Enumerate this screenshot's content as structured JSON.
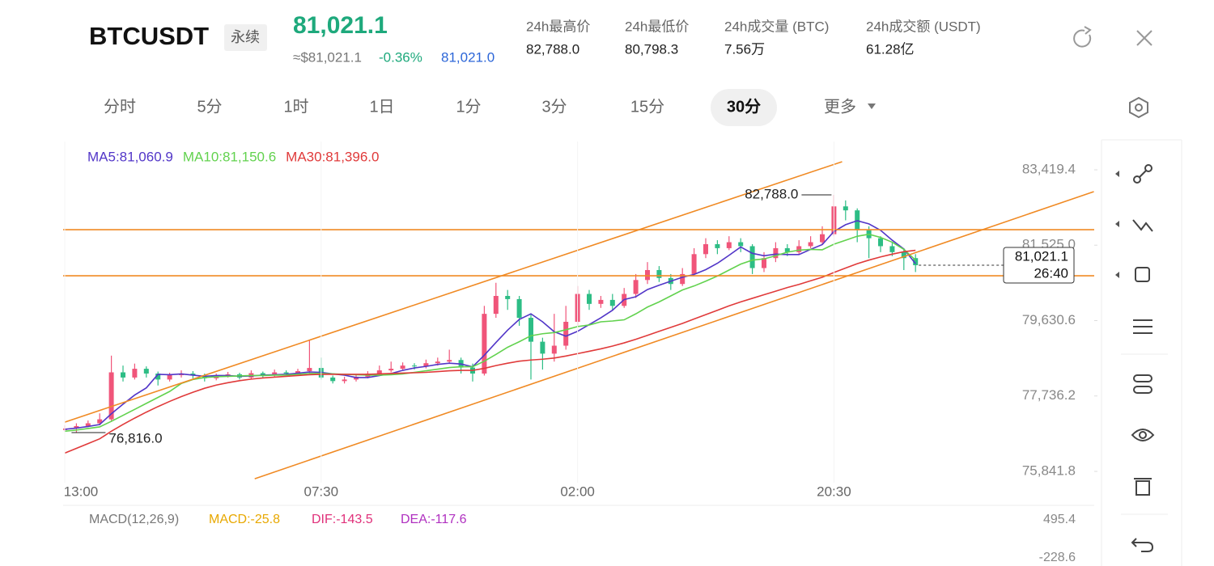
{
  "header": {
    "symbol": "BTCUSDT",
    "contract": "永续",
    "price": "81,021.1",
    "usd_price": "≈$81,021.1",
    "change": "-0.36%",
    "mark_price": "81,021.0",
    "stats": [
      {
        "label": "24h最高价",
        "value": "82,788.0"
      },
      {
        "label": "24h最低价",
        "value": "80,798.3"
      },
      {
        "label": "24h成交量 (BTC)",
        "value": "7.56万"
      },
      {
        "label": "24h成交额 (USDT)",
        "value": "61.28亿"
      }
    ]
  },
  "tabs": [
    "分时",
    "5分",
    "1时",
    "1日",
    "1分",
    "3分",
    "15分",
    "30分",
    "更多"
  ],
  "active_tab": "30分",
  "chart_data": {
    "type": "candlestick",
    "categories": [
      "13:00",
      null,
      null,
      null,
      null,
      null,
      null,
      null,
      null,
      null,
      null,
      null,
      null,
      null,
      null,
      null,
      null,
      null,
      null,
      null,
      null,
      null,
      "07:30",
      null,
      null,
      null,
      null,
      null,
      null,
      null,
      null,
      null,
      null,
      null,
      null,
      null,
      null,
      null,
      null,
      null,
      null,
      null,
      null,
      null,
      "02:00",
      null,
      null,
      null,
      null,
      null,
      null,
      null,
      null,
      null,
      null,
      null,
      null,
      null,
      null,
      null,
      null,
      null,
      null,
      null,
      null,
      null,
      "20:30",
      null,
      null,
      null,
      null,
      null,
      null,
      null
    ],
    "open": [
      76880,
      76920,
      76980,
      77050,
      77150,
      78330,
      78200,
      78420,
      78300,
      78150,
      78260,
      78300,
      78250,
      78180,
      78240,
      78280,
      78200,
      78310,
      78260,
      78330,
      78300,
      78360,
      78440,
      78200,
      78110,
      78150,
      78220,
      78300,
      78380,
      78420,
      78500,
      78480,
      78560,
      78600,
      78640,
      78450,
      78300,
      79800,
      80250,
      80170,
      79700,
      79100,
      78800,
      79000,
      79600,
      80300,
      80050,
      80150,
      80000,
      80300,
      80650,
      80900,
      80700,
      80550,
      80800,
      81300,
      81550,
      81450,
      81600,
      81500,
      80950,
      81200,
      81450,
      81350,
      81500,
      81600,
      81800,
      82500,
      82400,
      81900,
      81700,
      81500,
      81350,
      81200
    ],
    "high": [
      77000,
      77050,
      77120,
      77300,
      78750,
      78500,
      78550,
      78480,
      78350,
      78320,
      78380,
      78360,
      78300,
      78300,
      78340,
      78320,
      78380,
      78350,
      78400,
      78380,
      78420,
      79150,
      78700,
      78250,
      78220,
      78280,
      78360,
      78500,
      78600,
      78580,
      78560,
      78650,
      78700,
      78900,
      78700,
      78550,
      80000,
      80580,
      80400,
      80250,
      79800,
      79200,
      79800,
      80000,
      80500,
      80400,
      80250,
      80300,
      80450,
      80800,
      81100,
      81000,
      80800,
      80950,
      81450,
      81700,
      81650,
      81750,
      81700,
      81550,
      81350,
      81600,
      81550,
      81650,
      81750,
      82000,
      82788,
      82650,
      82450,
      82000,
      81750,
      81600,
      81450,
      81300
    ],
    "low": [
      76840,
      76816,
      76950,
      77000,
      77100,
      78100,
      78150,
      78200,
      78000,
      78100,
      78200,
      78180,
      78100,
      78130,
      78200,
      78150,
      78160,
      78200,
      78220,
      78250,
      78260,
      78300,
      78150,
      78050,
      78050,
      78100,
      78180,
      78250,
      78330,
      78380,
      78400,
      78430,
      78500,
      78550,
      78300,
      78100,
      78250,
      79700,
      79900,
      79500,
      78150,
      78400,
      78600,
      78900,
      79500,
      79900,
      79950,
      79900,
      79950,
      80200,
      80550,
      80600,
      80400,
      80500,
      80750,
      81200,
      81300,
      81400,
      81350,
      80800,
      80850,
      81100,
      81250,
      81300,
      81450,
      81550,
      81750,
      82150,
      81600,
      81200,
      81350,
      81250,
      80900,
      80850
    ],
    "close": [
      76920,
      76980,
      77050,
      77150,
      78330,
      78200,
      78420,
      78300,
      78150,
      78260,
      78300,
      78250,
      78180,
      78240,
      78280,
      78200,
      78310,
      78260,
      78330,
      78300,
      78360,
      78440,
      78200,
      78110,
      78150,
      78220,
      78300,
      78380,
      78420,
      78500,
      78480,
      78560,
      78600,
      78640,
      78450,
      78300,
      79800,
      80250,
      80170,
      79700,
      79100,
      78800,
      79000,
      79600,
      80300,
      80050,
      80150,
      80000,
      80300,
      80650,
      80900,
      80700,
      80550,
      80800,
      81300,
      81550,
      81450,
      81600,
      81500,
      80950,
      81200,
      81450,
      81350,
      81500,
      81600,
      81800,
      82500,
      82400,
      81900,
      81700,
      81500,
      81350,
      81200,
      81021.1
    ],
    "up_color": "#f0557a",
    "down_color": "#2dbd85",
    "series": [
      {
        "name": "MA5:81,060.9",
        "color": "#5236c8",
        "values": [
          76900,
          76930,
          76970,
          77020,
          77290,
          77530,
          77760,
          77940,
          78280,
          78270,
          78290,
          78260,
          78230,
          78250,
          78250,
          78230,
          78240,
          78260,
          78270,
          78280,
          78310,
          78340,
          78330,
          78290,
          78260,
          78200,
          78200,
          78250,
          78300,
          78380,
          78440,
          78480,
          78530,
          78560,
          78540,
          78470,
          78760,
          79080,
          79390,
          79660,
          79800,
          79600,
          79350,
          79240,
          79360,
          79530,
          79700,
          79890,
          80160,
          80230,
          80410,
          80520,
          80620,
          80720,
          80790,
          80910,
          81070,
          81270,
          81480,
          81320,
          81260,
          81300,
          81290,
          81290,
          81420,
          81540,
          81870,
          82040,
          82140,
          82060,
          81900,
          81650,
          81430,
          81060.9
        ]
      },
      {
        "name": "MA10:81,150.6",
        "color": "#62d24e",
        "values": [
          76850,
          76880,
          76920,
          76960,
          77100,
          77250,
          77400,
          77550,
          77700,
          77850,
          78050,
          78150,
          78200,
          78220,
          78230,
          78240,
          78250,
          78250,
          78260,
          78260,
          78280,
          78300,
          78300,
          78290,
          78280,
          78270,
          78260,
          78260,
          78270,
          78290,
          78330,
          78370,
          78410,
          78450,
          78470,
          78470,
          78610,
          78780,
          78960,
          79100,
          79250,
          79300,
          79330,
          79400,
          79480,
          79520,
          79600,
          79620,
          79650,
          79800,
          79970,
          80100,
          80250,
          80400,
          80500,
          80620,
          80750,
          80900,
          81050,
          81150,
          81180,
          81260,
          81350,
          81400,
          81420,
          81410,
          81550,
          81650,
          81750,
          81800,
          81720,
          81600,
          81420,
          81150.6
        ]
      },
      {
        "name": "MA30:81,396.0",
        "color": "#e03a3a",
        "values": [
          76300,
          76420,
          76540,
          76660,
          76850,
          77020,
          77180,
          77330,
          77470,
          77600,
          77720,
          77830,
          77930,
          78010,
          78070,
          78120,
          78160,
          78190,
          78210,
          78230,
          78250,
          78270,
          78280,
          78280,
          78280,
          78280,
          78280,
          78290,
          78300,
          78310,
          78320,
          78330,
          78350,
          78370,
          78380,
          78380,
          78430,
          78500,
          78560,
          78610,
          78640,
          78660,
          78690,
          78740,
          78800,
          78860,
          78920,
          78990,
          79070,
          79160,
          79260,
          79360,
          79460,
          79560,
          79670,
          79780,
          79890,
          80000,
          80100,
          80190,
          80280,
          80370,
          80460,
          80540,
          80630,
          80720,
          80840,
          80950,
          81060,
          81150,
          81230,
          81300,
          81360,
          81396.0
        ]
      }
    ],
    "ylim": [
      75557,
      84130
    ],
    "yticks": [
      {
        "value": 75841.8,
        "label": "75,841.8"
      },
      {
        "value": 77736.2,
        "label": "77,736.2"
      },
      {
        "value": 79630.6,
        "label": "79,630.6"
      },
      {
        "value": 81525.0,
        "label": "81,525.0"
      },
      {
        "value": 83419.4,
        "label": "83,419.4"
      }
    ],
    "max_label": {
      "value": 82788,
      "label": "82,788.0"
    },
    "min_label": {
      "value": 76816,
      "label": "76,816.0"
    },
    "last_price": {
      "value": 81021.1,
      "label": "81,021.1"
    },
    "countdown": "26:40",
    "drawing_color": "#f08a24",
    "drawings": [
      {
        "type": "hline",
        "value": 81915
      },
      {
        "type": "hline",
        "value": 80757
      },
      {
        "type": "segment",
        "x": [
          16.3,
          88.3
        ],
        "y": [
          75657,
          82871
        ]
      },
      {
        "type": "segment",
        "x": [
          0,
          66.7
        ],
        "y": [
          77079,
          83623
        ]
      }
    ]
  },
  "macd_panel": {
    "title": "MACD(12,26,9)",
    "macd": "MACD:-25.8",
    "dif": "DIF:-143.5",
    "dea": "DEA:-117.6",
    "top": "495.4",
    "bottom": "-228.6"
  }
}
